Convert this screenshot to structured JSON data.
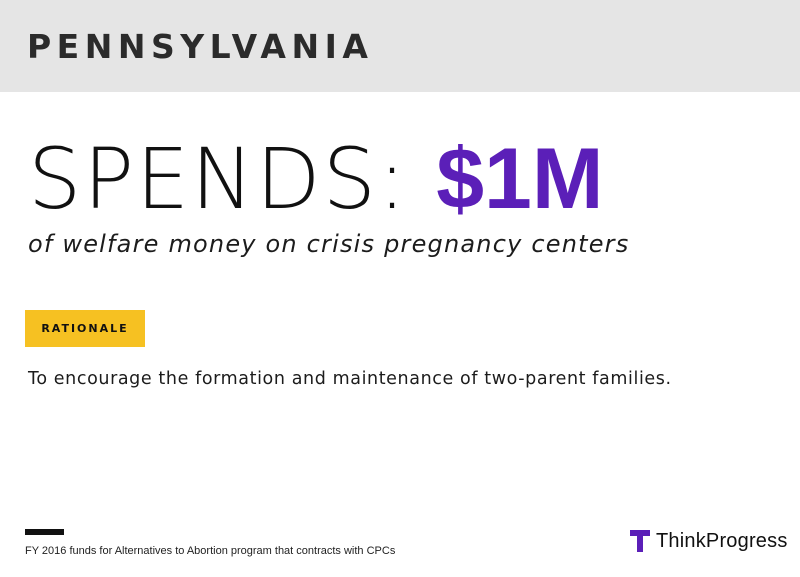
{
  "header": {
    "state": "PENNSYLVANIA"
  },
  "headline": {
    "verb": "SPENDS:",
    "amount": "$1M",
    "subline": "of welfare money on crisis pregnancy centers"
  },
  "rationale": {
    "label": "RATIONALE",
    "text": "To encourage the formation and maintenance of two-parent families."
  },
  "footer": {
    "footnote": "FY 2016 funds for Alternatives to Abortion program that contracts with CPCs",
    "brand": "ThinkProgress"
  },
  "colors": {
    "accent_purple": "#5b1fb8",
    "badge_yellow": "#f6c122",
    "header_gray": "#e5e5e5"
  }
}
